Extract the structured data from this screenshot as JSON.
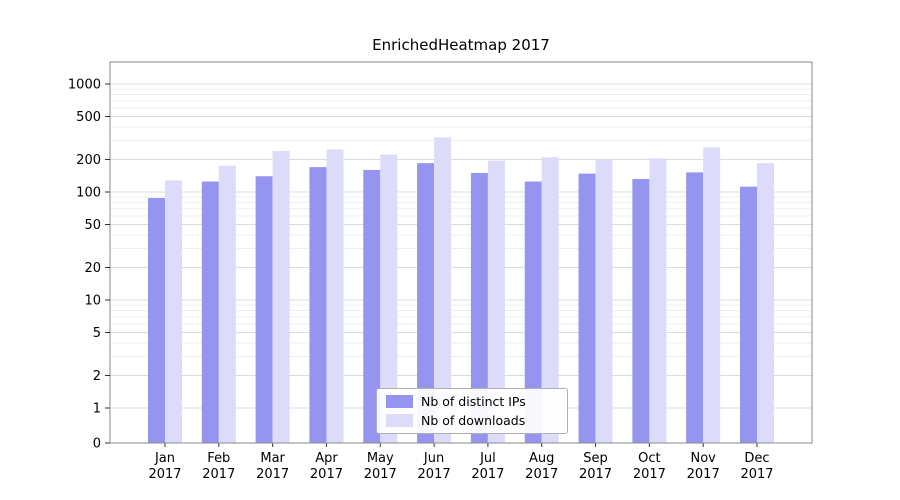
{
  "title": "EnrichedHeatmap 2017",
  "colors": {
    "ips": "#9595ef",
    "downloads": "#dcdcfa",
    "grid_major": "#dcdcdc",
    "grid_minor": "#efefef",
    "spine": "#8a8a8a",
    "tick": "#333333",
    "text": "#000000"
  },
  "legend": {
    "position": "bottom-center",
    "items": [
      {
        "label": "Nb of distinct IPs",
        "color_key": "ips"
      },
      {
        "label": "Nb of downloads",
        "color_key": "downloads"
      }
    ]
  },
  "y_axis": {
    "scale": "symlog",
    "ticks": [
      0,
      1,
      2,
      5,
      10,
      20,
      50,
      100,
      200,
      500,
      1000
    ]
  },
  "chart_data": {
    "type": "bar",
    "title": "EnrichedHeatmap 2017",
    "categories": [
      "Jan 2017",
      "Feb 2017",
      "Mar 2017",
      "Apr 2017",
      "May 2017",
      "Jun 2017",
      "Jul 2017",
      "Aug 2017",
      "Sep 2017",
      "Oct 2017",
      "Nov 2017",
      "Dec 2017"
    ],
    "series": [
      {
        "name": "Nb of distinct IPs",
        "values": [
          88,
          125,
          140,
          170,
          160,
          185,
          150,
          125,
          148,
          132,
          152,
          112
        ]
      },
      {
        "name": "Nb of downloads",
        "values": [
          128,
          175,
          240,
          248,
          222,
          320,
          195,
          210,
          198,
          205,
          258,
          185
        ]
      }
    ],
    "xlabel": "",
    "ylabel": "",
    "ylim": [
      0,
      1400
    ],
    "grid": true,
    "legend_position": "bottom-center"
  }
}
